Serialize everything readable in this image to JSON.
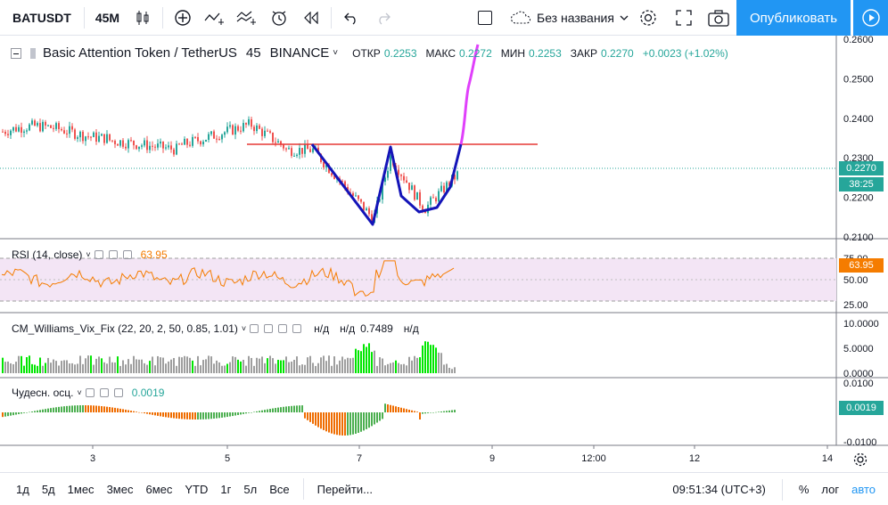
{
  "toolbar": {
    "symbol": "BATUSDT",
    "interval": "45M",
    "layout_name": "Без названия",
    "publish_label": "Опубликовать"
  },
  "main_pane": {
    "title": "Basic Attention Token / TetherUS",
    "interval": "45",
    "exchange": "BINANCE",
    "open_label": "ОТКР",
    "open": "0.2253",
    "high_label": "МАКС",
    "high": "0.2272",
    "low_label": "МИН",
    "low": "0.2253",
    "close_label": "ЗАКР",
    "close": "0.2270",
    "change": "+0.0023 (+1.02%)",
    "current_price_label": "0.2270",
    "countdown": "38:25"
  },
  "rsi_pane": {
    "title": "RSI (14, close)",
    "value": "63.95",
    "price_label": "63.95"
  },
  "vix_pane": {
    "title": "CM_Williams_Vix_Fix (22, 20, 2, 50, 0.85, 1.01)",
    "v1": "н/д",
    "v2": "н/д",
    "v3": "0.7489",
    "v4": "н/д"
  },
  "ao_pane": {
    "title": "Чудесн. осц.",
    "value": "0.0019",
    "price_label": "0.0019"
  },
  "bottombar": {
    "ranges": [
      "1д",
      "5д",
      "1мес",
      "3мес",
      "6мес",
      "YTD",
      "1г",
      "5л",
      "Все"
    ],
    "goto": "Перейти...",
    "time": "09:51:34 (UTC+3)",
    "percent": "%",
    "log": "лог",
    "auto": "авто"
  },
  "chart_data": {
    "type": "candlestick",
    "price_axis": [
      "0.2600",
      "0.2500",
      "0.2400",
      "0.2300",
      "0.2200",
      "0.2100"
    ],
    "rsi_axis": [
      "75.00",
      "50.00",
      "25.00"
    ],
    "vix_axis": [
      "10.0000",
      "5.0000",
      "0.0000"
    ],
    "ao_axis": [
      "0.0100",
      "-0.0100"
    ],
    "time_axis": [
      "3",
      "5",
      "7",
      "9",
      "12:00",
      "12",
      "14"
    ],
    "colors": {
      "up": "#26a69a",
      "down": "#ef5350",
      "drawing_blue": "#1414b8",
      "drawing_magenta": "#e040fb",
      "horizontal_line": "#e53935",
      "rsi": "#f57c00",
      "rsi_band": "#f3e5f5",
      "vix_gray": "#9e9e9e",
      "vix_green": "#00e600",
      "price_label": "#26a69a"
    }
  }
}
